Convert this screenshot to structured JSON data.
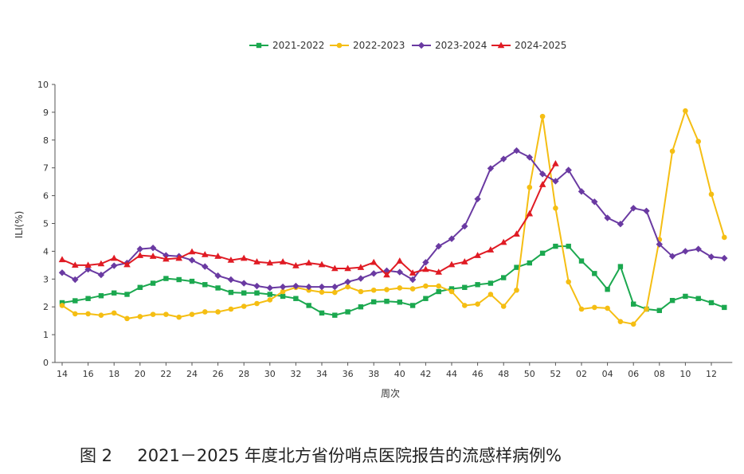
{
  "chart_data": {
    "type": "line",
    "ylabel": "ILI(%)",
    "xlabel": "周次",
    "ylim": [
      0,
      10
    ],
    "yticks": [
      "0",
      "1",
      "2",
      "3",
      "4",
      "5",
      "6",
      "7",
      "8",
      "9",
      "10"
    ],
    "x_ticks": [
      "14",
      "16",
      "18",
      "20",
      "22",
      "24",
      "26",
      "28",
      "30",
      "32",
      "34",
      "36",
      "38",
      "40",
      "42",
      "44",
      "46",
      "48",
      "50",
      "52",
      "02",
      "04",
      "06",
      "08",
      "10",
      "12"
    ],
    "legend_position": "top-center",
    "grid": false,
    "series": [
      {
        "name": "2021-2022",
        "color": "#1ba84f",
        "marker": "square",
        "values": [
          2.15,
          2.22,
          2.3,
          2.4,
          2.5,
          2.45,
          2.7,
          2.85,
          3.02,
          2.98,
          2.92,
          2.8,
          2.68,
          2.52,
          2.5,
          2.5,
          2.45,
          2.38,
          2.3,
          2.05,
          1.78,
          1.7,
          1.82,
          2.0,
          2.18,
          2.2,
          2.17,
          2.05,
          2.3,
          2.55,
          2.65,
          2.7,
          2.8,
          2.85,
          3.05,
          3.42,
          3.58,
          3.93,
          4.18,
          4.18,
          3.65,
          3.2,
          2.63,
          3.45,
          2.1,
          1.92,
          1.87,
          2.23,
          2.38,
          2.3,
          2.15,
          1.98
        ]
      },
      {
        "name": "2022-2023",
        "color": "#f5be13",
        "marker": "circle",
        "values": [
          2.05,
          1.75,
          1.75,
          1.7,
          1.78,
          1.58,
          1.65,
          1.73,
          1.73,
          1.63,
          1.73,
          1.82,
          1.82,
          1.92,
          2.02,
          2.12,
          2.25,
          2.55,
          2.7,
          2.6,
          2.53,
          2.52,
          2.72,
          2.55,
          2.6,
          2.62,
          2.68,
          2.65,
          2.75,
          2.75,
          2.55,
          2.05,
          2.1,
          2.45,
          2.02,
          2.6,
          6.3,
          8.85,
          5.55,
          2.9,
          1.92,
          1.98,
          1.95,
          1.47,
          1.38,
          1.92,
          4.42,
          7.6,
          9.05,
          7.95,
          6.05,
          4.5
        ]
      },
      {
        "name": "2023-2024",
        "color": "#6a3aa2",
        "marker": "diamond",
        "values": [
          3.23,
          2.98,
          3.35,
          3.15,
          3.48,
          3.58,
          4.08,
          4.12,
          3.85,
          3.82,
          3.68,
          3.45,
          3.12,
          2.98,
          2.85,
          2.75,
          2.68,
          2.72,
          2.75,
          2.72,
          2.72,
          2.72,
          2.9,
          3.02,
          3.2,
          3.3,
          3.25,
          2.98,
          3.6,
          4.18,
          4.45,
          4.9,
          5.88,
          6.98,
          7.32,
          7.62,
          7.38,
          6.78,
          6.52,
          6.92,
          6.15,
          5.78,
          5.2,
          4.98,
          5.55,
          5.45,
          4.25,
          3.82,
          4.0,
          4.08,
          3.8,
          3.75
        ]
      },
      {
        "name": "2024-2025",
        "color": "#e01b24",
        "marker": "triangle",
        "values": [
          3.7,
          3.5,
          3.5,
          3.55,
          3.75,
          3.52,
          3.85,
          3.82,
          3.72,
          3.75,
          3.98,
          3.88,
          3.82,
          3.68,
          3.75,
          3.62,
          3.58,
          3.62,
          3.48,
          3.58,
          3.52,
          3.38,
          3.38,
          3.42,
          3.6,
          3.15,
          3.65,
          3.22,
          3.35,
          3.25,
          3.52,
          3.62,
          3.85,
          4.05,
          4.32,
          4.62,
          5.35,
          6.4,
          7.15
        ]
      }
    ]
  },
  "caption": {
    "figure_label": "图 2",
    "text": "2021－2025 年度北方省份哨点医院报告的流感样病例%"
  }
}
